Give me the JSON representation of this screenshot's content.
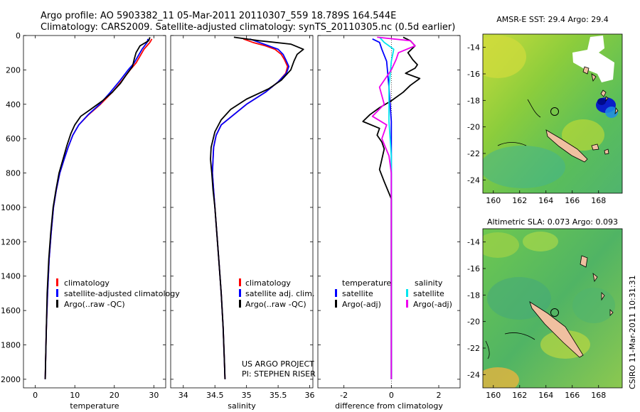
{
  "header": {
    "line1": "Argo profile: AO 5903382_11 05-Mar-2011 20110307_559 18.789S 164.544E",
    "line2": "Climatology: CARS2009. Satellite-adjusted climatology: synTS_20110305.nc (0.5d earlier)"
  },
  "colors": {
    "climatology": "#ff0000",
    "satellite": "#0000ff",
    "argo": "#000000",
    "sat_salinity": "#00e5ee",
    "argo_salinity": "#ee00ee"
  },
  "chart_data": [
    {
      "type": "line",
      "name": "temperature-profile",
      "xlabel": "temperature",
      "xticks": [
        0,
        10,
        20,
        30
      ],
      "xlim": [
        -3,
        33
      ],
      "ylim": [
        0,
        2050
      ],
      "yticks": [
        0,
        200,
        400,
        600,
        800,
        1000,
        1200,
        1400,
        1600,
        1800,
        2000
      ],
      "series": [
        {
          "name": "climatology",
          "color": "#ff0000",
          "points": [
            [
              29.5,
              20
            ],
            [
              29.0,
              40
            ],
            [
              27.5,
              80
            ],
            [
              26.5,
              120
            ],
            [
              25.5,
              160
            ],
            [
              24.0,
              200
            ],
            [
              22.0,
              260
            ],
            [
              19.5,
              330
            ],
            [
              16.5,
              400
            ],
            [
              13.5,
              460
            ],
            [
              11.0,
              520
            ],
            [
              9.5,
              580
            ],
            [
              8.3,
              650
            ],
            [
              7.3,
              720
            ],
            [
              6.2,
              800
            ],
            [
              5.3,
              900
            ],
            [
              4.6,
              1000
            ],
            [
              4.0,
              1150
            ],
            [
              3.5,
              1300
            ],
            [
              3.1,
              1500
            ],
            [
              2.8,
              1700
            ],
            [
              2.6,
              1900
            ],
            [
              2.5,
              2000
            ]
          ]
        },
        {
          "name": "satellite-adjusted climatology",
          "color": "#0000ff",
          "points": [
            [
              28.5,
              20
            ],
            [
              28.3,
              40
            ],
            [
              27.0,
              80
            ],
            [
              26.0,
              120
            ],
            [
              25.0,
              160
            ],
            [
              23.5,
              200
            ],
            [
              21.5,
              260
            ],
            [
              19.0,
              330
            ],
            [
              16.3,
              400
            ],
            [
              13.4,
              460
            ],
            [
              11.0,
              520
            ],
            [
              9.5,
              580
            ],
            [
              8.3,
              650
            ],
            [
              7.3,
              720
            ],
            [
              6.2,
              800
            ],
            [
              5.3,
              900
            ],
            [
              4.6,
              1000
            ],
            [
              4.0,
              1150
            ],
            [
              3.5,
              1300
            ],
            [
              3.1,
              1500
            ],
            [
              2.8,
              1700
            ],
            [
              2.6,
              1900
            ],
            [
              2.5,
              2000
            ]
          ]
        },
        {
          "name": "Argo(..raw -QC)",
          "color": "#000000",
          "points": [
            [
              29.0,
              10
            ],
            [
              28.7,
              30
            ],
            [
              26.5,
              60
            ],
            [
              25.5,
              100
            ],
            [
              25.0,
              140
            ],
            [
              24.6,
              180
            ],
            [
              23.0,
              230
            ],
            [
              21.5,
              280
            ],
            [
              19.5,
              330
            ],
            [
              17.0,
              380
            ],
            [
              14.0,
              430
            ],
            [
              11.5,
              470
            ],
            [
              10.0,
              520
            ],
            [
              9.0,
              570
            ],
            [
              8.0,
              640
            ],
            [
              7.0,
              720
            ],
            [
              6.0,
              800
            ],
            [
              5.2,
              900
            ],
            [
              4.5,
              1000
            ],
            [
              3.9,
              1150
            ],
            [
              3.4,
              1300
            ],
            [
              3.0,
              1500
            ],
            [
              2.8,
              1700
            ],
            [
              2.6,
              1900
            ],
            [
              2.5,
              2000
            ]
          ]
        }
      ],
      "legend": [
        {
          "label": "climatology",
          "color": "#ff0000"
        },
        {
          "label": "satellite-adjusted climatology",
          "color": "#0000ff"
        },
        {
          "label": "Argo(..raw -QC)",
          "color": "#000000"
        }
      ]
    },
    {
      "type": "line",
      "name": "salinity-profile",
      "xlabel": "salinity",
      "xticks": [
        34,
        34.5,
        35,
        35.5,
        36
      ],
      "xlim": [
        33.8,
        36.05
      ],
      "ylim": [
        0,
        2050
      ],
      "series": [
        {
          "name": "climatology",
          "color": "#ff0000",
          "points": [
            [
              34.95,
              20
            ],
            [
              35.1,
              40
            ],
            [
              35.3,
              60
            ],
            [
              35.45,
              80
            ],
            [
              35.55,
              110
            ],
            [
              35.6,
              140
            ],
            [
              35.65,
              180
            ],
            [
              35.62,
              220
            ],
            [
              35.5,
              270
            ],
            [
              35.3,
              330
            ],
            [
              35.0,
              400
            ],
            [
              34.8,
              460
            ],
            [
              34.6,
              520
            ],
            [
              34.52,
              580
            ],
            [
              34.48,
              650
            ],
            [
              34.47,
              720
            ],
            [
              34.46,
              800
            ],
            [
              34.48,
              900
            ],
            [
              34.5,
              1000
            ],
            [
              34.53,
              1150
            ],
            [
              34.56,
              1300
            ],
            [
              34.6,
              1500
            ],
            [
              34.63,
              1700
            ],
            [
              34.65,
              1900
            ],
            [
              34.66,
              2000
            ]
          ]
        },
        {
          "name": "satellite adj. clim.",
          "color": "#0000ff",
          "points": [
            [
              35.05,
              20
            ],
            [
              35.2,
              40
            ],
            [
              35.35,
              60
            ],
            [
              35.5,
              80
            ],
            [
              35.58,
              110
            ],
            [
              35.62,
              140
            ],
            [
              35.67,
              180
            ],
            [
              35.63,
              220
            ],
            [
              35.5,
              270
            ],
            [
              35.3,
              330
            ],
            [
              35.0,
              400
            ],
            [
              34.8,
              460
            ],
            [
              34.6,
              520
            ],
            [
              34.52,
              580
            ],
            [
              34.48,
              650
            ],
            [
              34.47,
              720
            ],
            [
              34.46,
              800
            ],
            [
              34.48,
              900
            ],
            [
              34.5,
              1000
            ],
            [
              34.53,
              1150
            ],
            [
              34.56,
              1300
            ],
            [
              34.6,
              1500
            ],
            [
              34.63,
              1700
            ],
            [
              34.65,
              1900
            ],
            [
              34.66,
              2000
            ]
          ]
        },
        {
          "name": "Argo(..raw -QC)",
          "color": "#000000",
          "points": [
            [
              34.8,
              10
            ],
            [
              35.2,
              30
            ],
            [
              35.7,
              50
            ],
            [
              35.9,
              80
            ],
            [
              35.8,
              110
            ],
            [
              35.75,
              150
            ],
            [
              35.7,
              200
            ],
            [
              35.55,
              260
            ],
            [
              35.35,
              310
            ],
            [
              35.0,
              370
            ],
            [
              34.75,
              430
            ],
            [
              34.6,
              490
            ],
            [
              34.5,
              560
            ],
            [
              34.44,
              650
            ],
            [
              34.43,
              720
            ],
            [
              34.45,
              800
            ],
            [
              34.47,
              900
            ],
            [
              34.5,
              1000
            ],
            [
              34.53,
              1150
            ],
            [
              34.56,
              1300
            ],
            [
              34.6,
              1500
            ],
            [
              34.63,
              1700
            ],
            [
              34.65,
              1900
            ],
            [
              34.66,
              2000
            ]
          ]
        }
      ],
      "legend": [
        {
          "label": "climatology",
          "color": "#ff0000"
        },
        {
          "label": "satellite adj. clim.",
          "color": "#0000ff"
        },
        {
          "label": "Argo(..raw -QC)",
          "color": "#000000"
        }
      ],
      "annotation": [
        "US ARGO PROJECT",
        "PI: STEPHEN RISER"
      ]
    },
    {
      "type": "line",
      "name": "difference-profile",
      "xlabel": "difference from climatology",
      "xticks": [
        -2,
        0,
        2
      ],
      "xlim": [
        -3.1,
        2.9
      ],
      "ylim": [
        0,
        2050
      ],
      "series": [
        {
          "name": "temperature satellite",
          "color": "#0000ff",
          "points": [
            [
              -0.8,
              20
            ],
            [
              -0.5,
              40
            ],
            [
              -0.4,
              80
            ],
            [
              -0.2,
              150
            ],
            [
              -0.1,
              300
            ],
            [
              0.0,
              500
            ],
            [
              0.0,
              1000
            ],
            [
              0.0,
              2000
            ]
          ]
        },
        {
          "name": "temperature Argo(-adj)",
          "color": "#000000",
          "points": [
            [
              0.5,
              10
            ],
            [
              0.8,
              30
            ],
            [
              1.0,
              60
            ],
            [
              0.7,
              100
            ],
            [
              0.9,
              140
            ],
            [
              1.1,
              170
            ],
            [
              1.0,
              190
            ],
            [
              0.6,
              220
            ],
            [
              1.2,
              250
            ],
            [
              0.8,
              290
            ],
            [
              0.5,
              330
            ],
            [
              0.0,
              380
            ],
            [
              -0.5,
              420
            ],
            [
              -0.9,
              460
            ],
            [
              -1.2,
              500
            ],
            [
              -0.5,
              540
            ],
            [
              -0.6,
              580
            ],
            [
              -0.4,
              620
            ],
            [
              -0.3,
              660
            ],
            [
              -0.4,
              720
            ],
            [
              -0.5,
              780
            ],
            [
              -0.3,
              850
            ],
            [
              0.0,
              950
            ],
            [
              0.0,
              1200
            ],
            [
              0.0,
              2000
            ]
          ]
        },
        {
          "name": "salinity satellite",
          "color": "#00e5ee",
          "points": [
            [
              -0.5,
              10
            ],
            [
              -0.3,
              40
            ],
            [
              0.1,
              80
            ],
            [
              0.0,
              150
            ],
            [
              -0.1,
              300
            ],
            [
              -0.1,
              500
            ],
            [
              0.0,
              700
            ],
            [
              0.0,
              2000
            ]
          ]
        },
        {
          "name": "salinity Argo(-adj)",
          "color": "#ee00ee",
          "points": [
            [
              -0.6,
              10
            ],
            [
              0.8,
              30
            ],
            [
              1.0,
              60
            ],
            [
              0.3,
              100
            ],
            [
              0.2,
              140
            ],
            [
              0.0,
              200
            ],
            [
              -0.5,
              300
            ],
            [
              -0.3,
              400
            ],
            [
              -0.8,
              470
            ],
            [
              -0.2,
              520
            ],
            [
              -0.4,
              600
            ],
            [
              -0.1,
              700
            ],
            [
              0.0,
              800
            ],
            [
              0.0,
              2000
            ]
          ]
        }
      ],
      "legend": {
        "temperature_heading": "temperature",
        "salinity_heading": "salinity",
        "temperature_items": [
          {
            "label": "satellite",
            "color": "#0000ff"
          },
          {
            "label": "Argo(-adj)",
            "color": "#000000"
          }
        ],
        "salinity_items": [
          {
            "label": "satellite",
            "color": "#00e5ee"
          },
          {
            "label": "Argo(-adj)",
            "color": "#ee00ee"
          }
        ]
      }
    }
  ],
  "maps": [
    {
      "title": "AMSR-E SST: 29.4  Argo: 29.4",
      "xticks": [
        160,
        162,
        164,
        166,
        168
      ],
      "yticks": [
        -14,
        -16,
        -18,
        -20,
        -22,
        -24
      ],
      "lon_range": [
        159.2,
        169.8
      ],
      "lat_range": [
        -25,
        -13
      ]
    },
    {
      "title": "Altimetric SLA: 0.073  Argo: 0.093",
      "xticks": [
        160,
        162,
        164,
        166,
        168
      ],
      "yticks": [
        -14,
        -16,
        -18,
        -20,
        -22,
        -24
      ],
      "lon_range": [
        159.2,
        169.8
      ],
      "lat_range": [
        -25,
        -13
      ]
    }
  ],
  "float_location": {
    "lon": 164.544,
    "lat": -18.789
  },
  "side_label": "CSIRO 11-Mar-2011 10:31:31"
}
